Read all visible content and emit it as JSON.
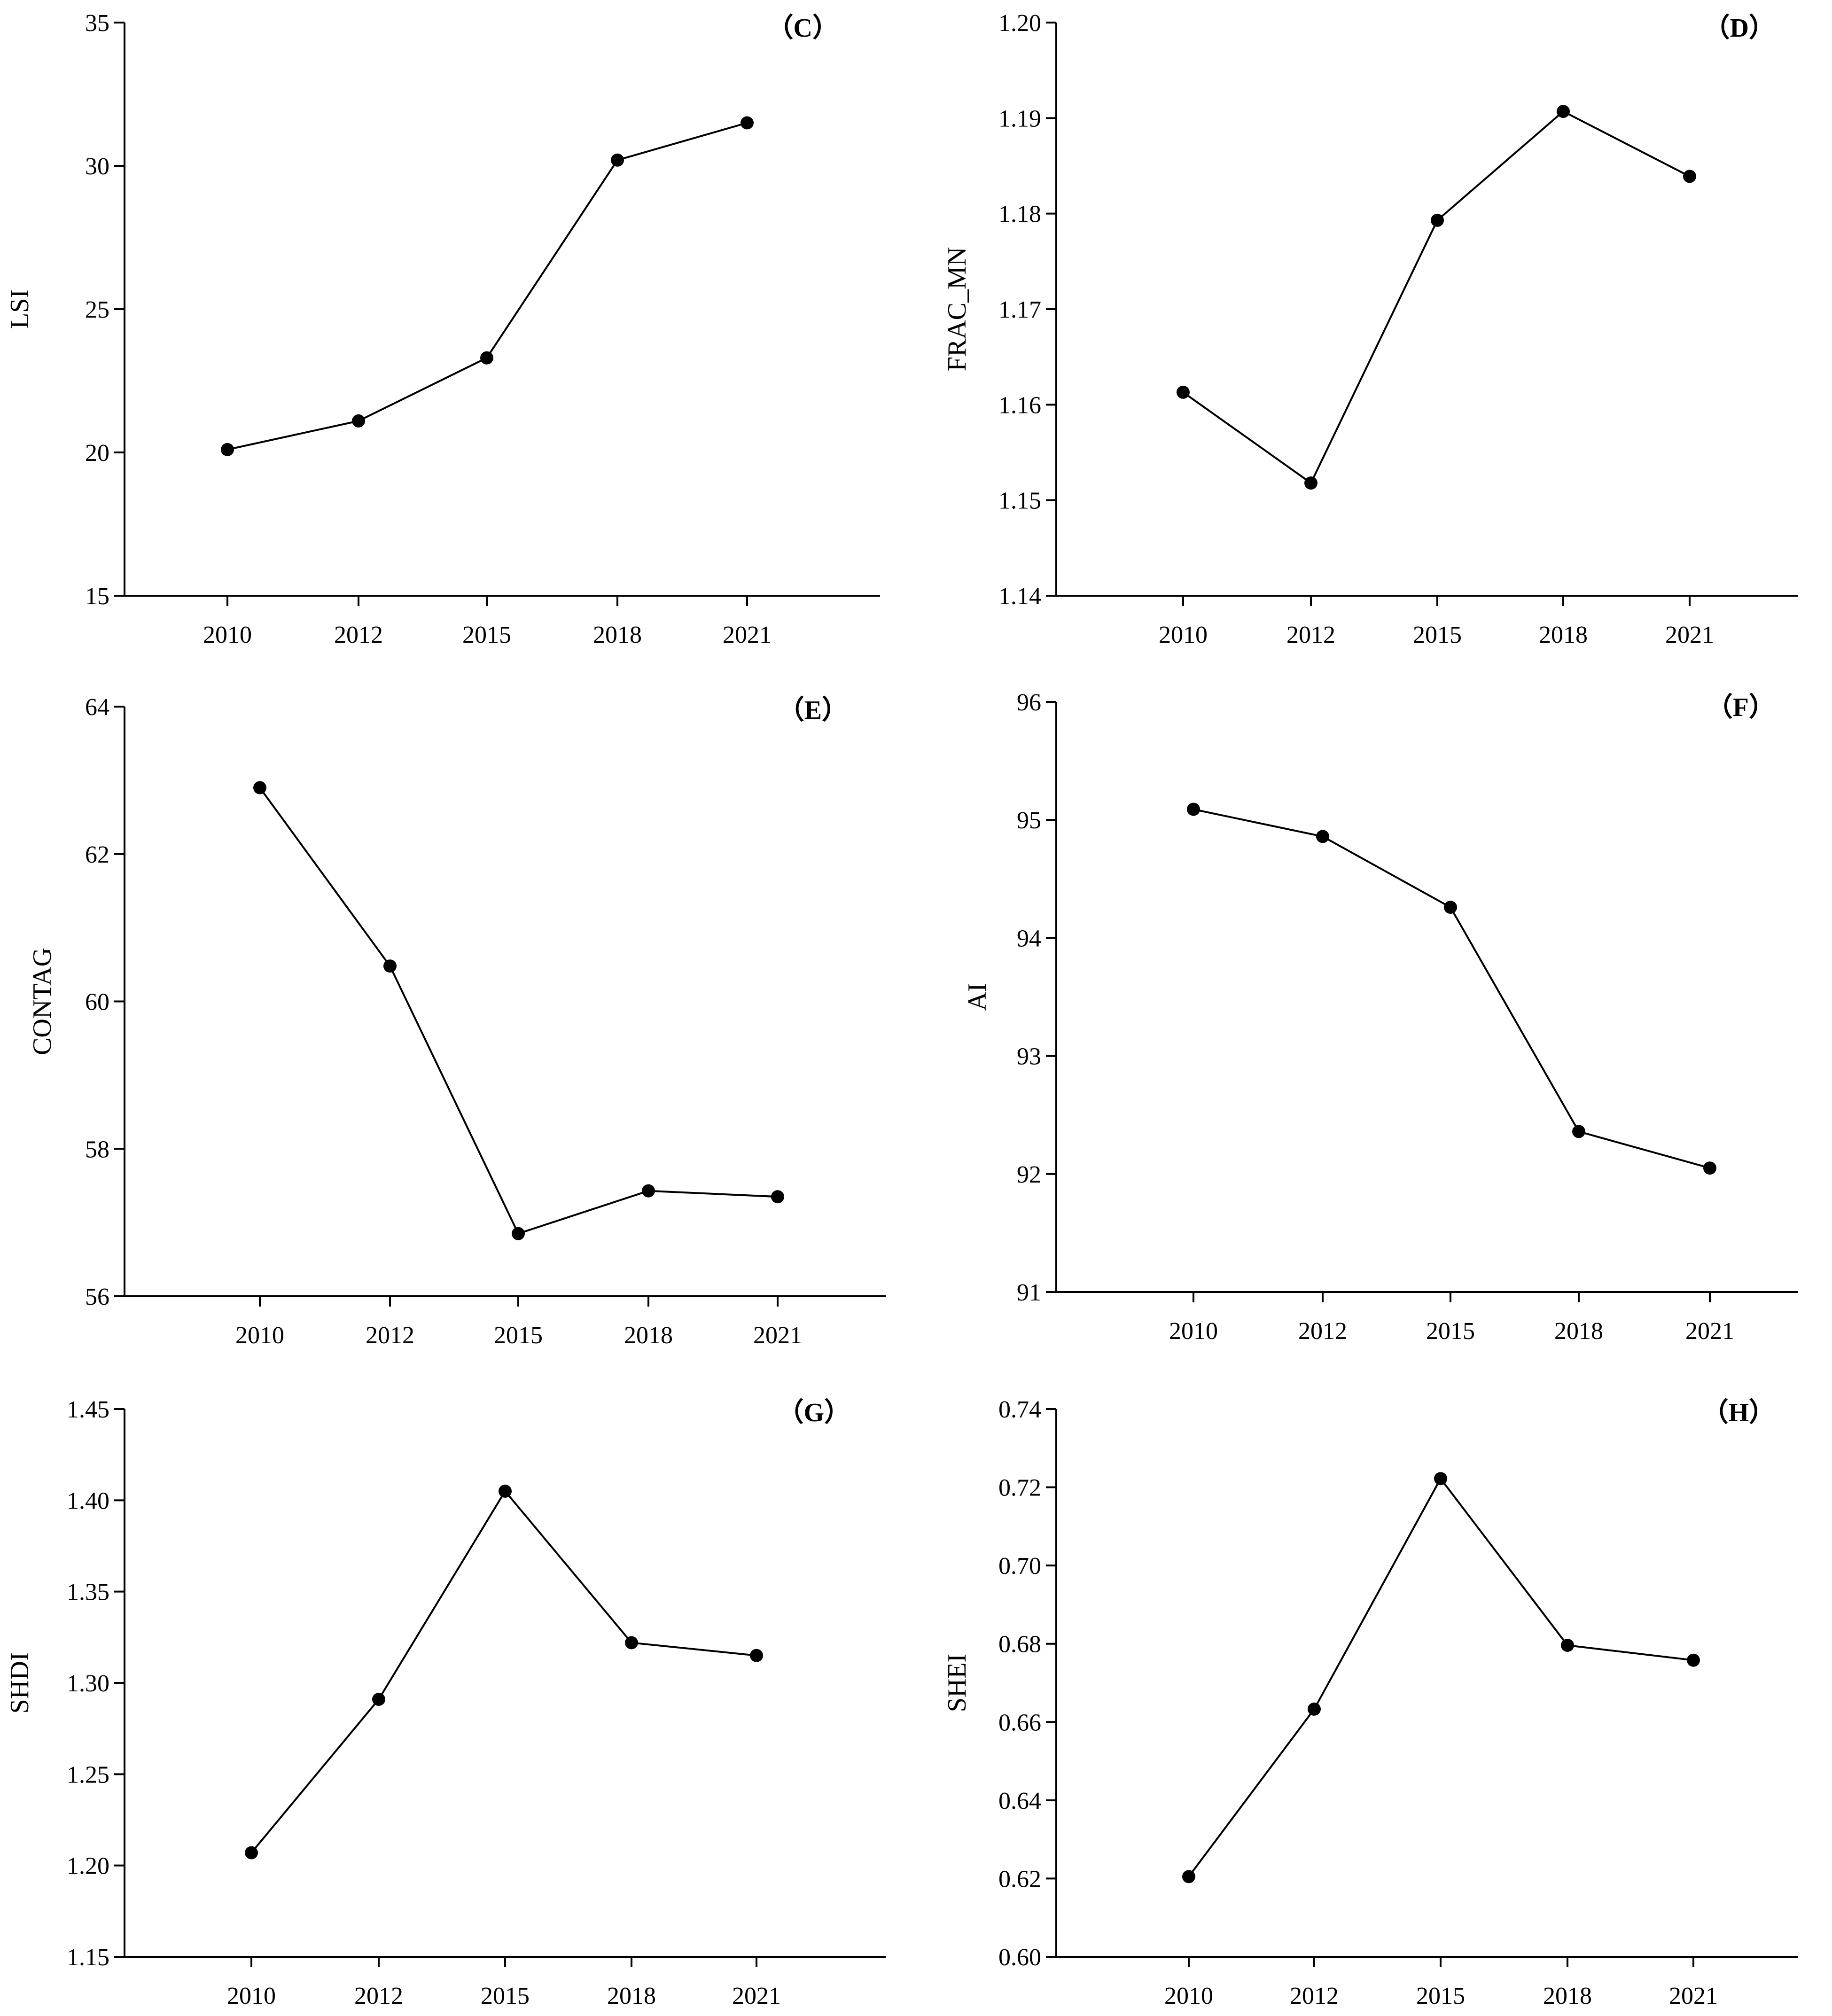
{
  "chart_data": [
    {
      "type": "line",
      "panel_label": "（C）",
      "ylabel": "LSI",
      "x": [
        "2010",
        "2012",
        "2015",
        "2018",
        "2021"
      ],
      "values": [
        20.1,
        21.1,
        23.3,
        30.2,
        31.5
      ],
      "ylim": [
        15,
        35
      ],
      "yticks": [
        "15",
        "20",
        "25",
        "30",
        "35"
      ],
      "grid": false
    },
    {
      "type": "line",
      "panel_label": "（D）",
      "ylabel": "FRAC_MN",
      "x": [
        "2010",
        "2012",
        "2015",
        "2018",
        "2021"
      ],
      "values": [
        1.1613,
        1.1518,
        1.1793,
        1.1907,
        1.1839
      ],
      "ylim": [
        1.14,
        1.2
      ],
      "yticks": [
        "1.14",
        "1.15",
        "1.16",
        "1.17",
        "1.18",
        "1.19",
        "1.20"
      ],
      "grid": false
    },
    {
      "type": "line",
      "panel_label": "（E）",
      "ylabel": "CONTAG",
      "x": [
        "2010",
        "2012",
        "2015",
        "2018",
        "2021"
      ],
      "values": [
        62.9,
        60.48,
        56.85,
        57.43,
        57.35
      ],
      "ylim": [
        56,
        64
      ],
      "yticks": [
        "56",
        "58",
        "60",
        "62",
        "64"
      ],
      "grid": false
    },
    {
      "type": "line",
      "panel_label": "（F）",
      "ylabel": "AI",
      "x": [
        "2010",
        "2012",
        "2015",
        "2018",
        "2021"
      ],
      "values": [
        95.09,
        94.86,
        94.26,
        92.36,
        92.05
      ],
      "ylim": [
        91,
        96
      ],
      "yticks": [
        "91",
        "92",
        "93",
        "94",
        "95",
        "96"
      ],
      "grid": false
    },
    {
      "type": "line",
      "panel_label": "（G）",
      "ylabel": "SHDI",
      "x": [
        "2010",
        "2012",
        "2015",
        "2018",
        "2021"
      ],
      "values": [
        1.207,
        1.291,
        1.405,
        1.322,
        1.315
      ],
      "ylim": [
        1.15,
        1.45
      ],
      "yticks": [
        "1.15",
        "1.20",
        "1.25",
        "1.30",
        "1.35",
        "1.40",
        "1.45"
      ],
      "grid": false
    },
    {
      "type": "line",
      "panel_label": "（H）",
      "ylabel": "SHEI",
      "x": [
        "2010",
        "2012",
        "2015",
        "2018",
        "2021"
      ],
      "values": [
        0.6205,
        0.6633,
        0.7222,
        0.6796,
        0.6758
      ],
      "ylim": [
        0.6,
        0.74
      ],
      "yticks": [
        "0.60",
        "0.62",
        "0.64",
        "0.66",
        "0.68",
        "0.70",
        "0.72",
        "0.74"
      ],
      "grid": false
    }
  ]
}
